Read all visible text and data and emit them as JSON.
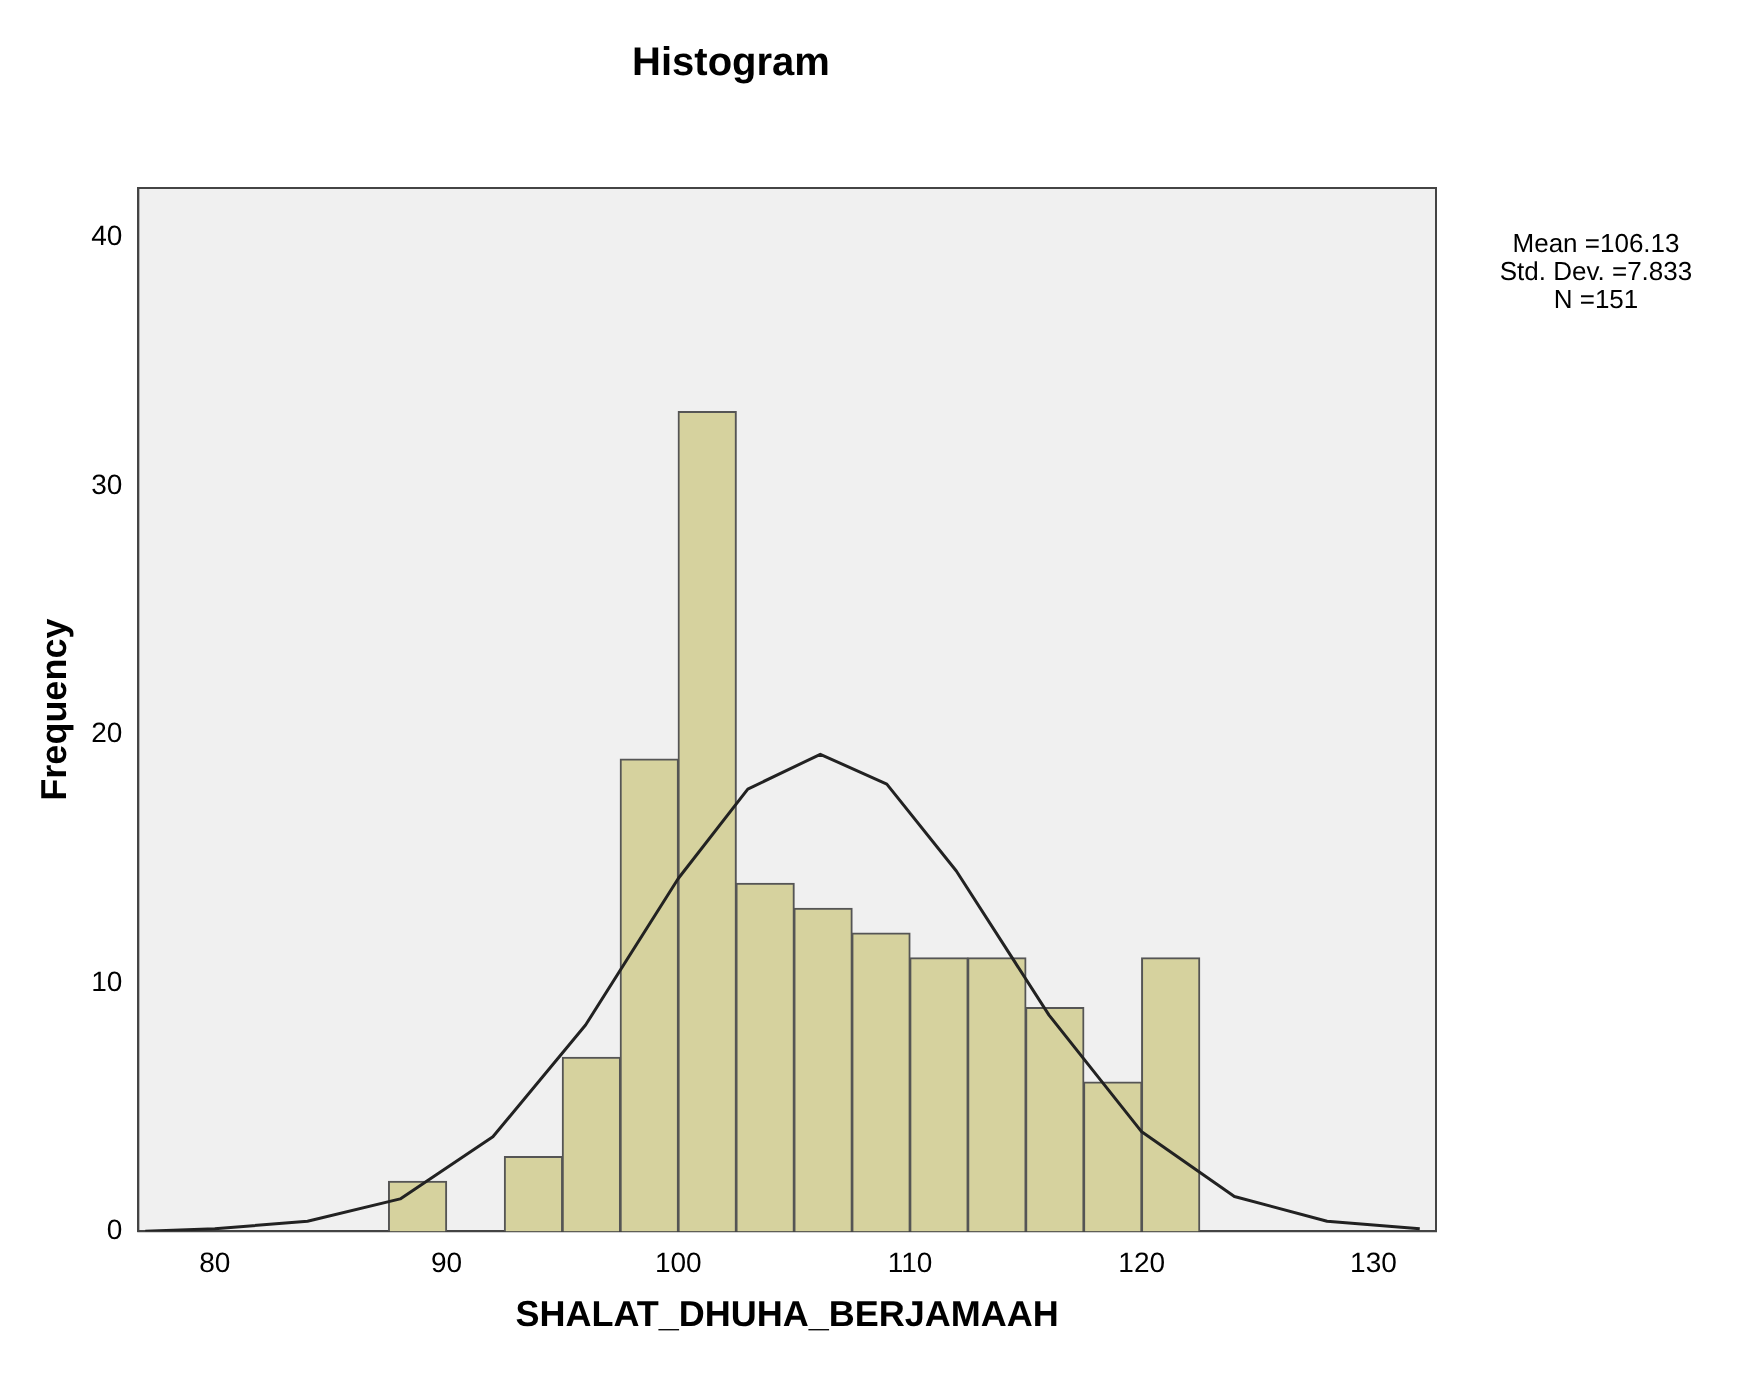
{
  "chart_data": {
    "type": "histogram",
    "title": "Histogram",
    "xlabel": "SHALAT_DHUHA_BERJAMAAH",
    "ylabel": "Frequency",
    "bins": [
      87.5,
      90,
      92.5,
      95,
      97.5,
      100,
      102.5,
      105,
      107.5,
      110,
      112.5,
      115,
      117.5,
      120,
      122.5
    ],
    "values": [
      2,
      0,
      3,
      7,
      19,
      33,
      14,
      13,
      12,
      11,
      11,
      9,
      6,
      11
    ],
    "color": "#d6d29e",
    "series": [
      {
        "type": "line",
        "color": "#222222",
        "x": [
          77,
          80,
          84,
          88,
          92,
          96,
          100,
          103,
          106.13,
          109,
          112,
          116,
          120,
          124,
          128,
          132
        ],
        "values": [
          0.0,
          0.1,
          0.4,
          1.3,
          3.8,
          8.3,
          14.2,
          17.8,
          19.2,
          18.0,
          14.5,
          8.7,
          4.0,
          1.4,
          0.4,
          0.1
        ]
      }
    ],
    "xlim": [
      76.7,
      132.7
    ],
    "xticks": [
      80,
      90,
      100,
      110,
      120,
      130
    ],
    "ylim": [
      0,
      42
    ],
    "yticks": [
      0,
      10,
      20,
      30,
      40
    ],
    "grid": false,
    "legend": false,
    "marker": "none",
    "line_style": "solid",
    "annotations": [
      "Mean =106.13",
      "Std. Dev. =7.833",
      "N =151"
    ]
  }
}
